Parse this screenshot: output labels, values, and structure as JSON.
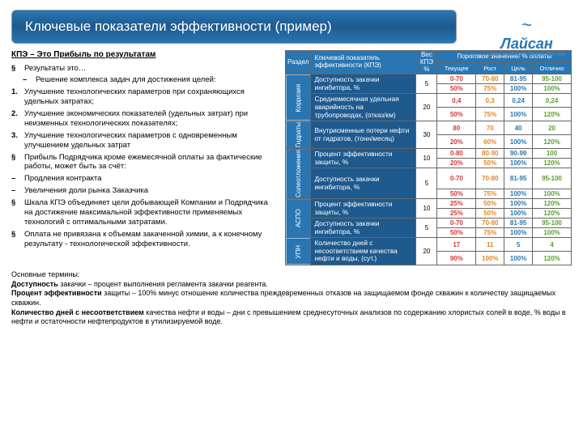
{
  "title": "Ключевые показатели эффективности (пример)",
  "logo": {
    "name": "Лайсан",
    "sub": "ХИМИЧЕСКИЕ ТЕХНОЛОГИИ"
  },
  "subtitle": "КПЭ – Это Прибыль по результатам",
  "bullets": {
    "b1": "Результаты это…",
    "b2": "Решение комплекса задач для достижения целей:",
    "b3": "Улучшение технологических параметров при сохраняющихся удельных затратах;",
    "b4": "Улучшение экономических показателей (удельных затрат) при неизменных технологических показателях;",
    "b5": "Улучшение технологических параметров с одновременным улучшением удельных затрат",
    "b6": "Прибыль Подрядчика кроме ежемесячной оплаты за фактические работы, может быть за счёт:",
    "b7": "Продления контракта",
    "b8": "Увеличения доли рынка Заказчика",
    "b9": "Шкала КПЭ объединяет цели добывающей Компании и Подрядчика на достижение максимальной эффективности применяемых технологий с оптимальными затратами.",
    "b10": "Оплата не привязана к объемам закаченной химии, а к конечному результату - технологической эффективности."
  },
  "terms": {
    "hdr": "Основные термины:",
    "t1a": "Доступность",
    "t1b": " закачки – процент выполнения регламента закачки реагента.",
    "t2a": "Процент эффективности",
    "t2b": " защиты – 100% минус отношение количества преждевременных отказов на защищаемом фонде скважин к количеству защищаемых скважин.",
    "t3a": "Количество дней с несоответствием",
    "t3b": " качества нефти и воды – дни с превышением среднесуточных анализов по содержанию хлористых солей в воде, % воды в нефти и остаточности нефтепродуктов в утилизируемой воде."
  },
  "table": {
    "headers": {
      "razdel": "Раздел",
      "kpi": "Ключевой показатель эффективности (КПЭ)",
      "weight": "Вес КПЭ %",
      "threshold": "Пороговое значение/ % оплаты",
      "levels": {
        "l1": "Текущее",
        "l2": "Рост",
        "l3": "Цель",
        "l4": "Отлично"
      }
    },
    "sections": [
      {
        "name": "Коррозия",
        "rows": [
          {
            "kpi": "Доступность закачки ингибитора, %",
            "w": "5",
            "v": [
              "0-70",
              "70-80",
              "81-95",
              "95-100"
            ],
            "p": [
              "50%",
              "75%",
              "100%",
              "100%"
            ]
          },
          {
            "kpi": "Среднемесячная удельная аварийность на трубопроводах, (отказ/км)",
            "w": "20",
            "v": [
              "0,4",
              "0,3",
              "0,24",
              "0,24"
            ],
            "p": [
              "50%",
              "75%",
              "100%",
              "120%"
            ]
          }
        ]
      },
      {
        "name": "Гидраты",
        "rows": [
          {
            "kpi": "Внутрисменные потери нефти от гидратов, (тонн/месяц)",
            "w": "30",
            "v": [
              "80",
              "70",
              "40",
              "20"
            ],
            "p": [
              "20%",
              "60%",
              "100%",
              "120%"
            ]
          }
        ]
      },
      {
        "name": "Солеотложения",
        "rows": [
          {
            "kpi": "Процент эффективности защиты, %",
            "w": "10",
            "v": [
              "0-80",
              "80-90",
              "90-99",
              "100"
            ],
            "p": [
              "20%",
              "50%",
              "100%",
              "120%"
            ]
          },
          {
            "kpi": "Доступность закачки ингибитора, %",
            "w": "5",
            "v": [
              "0-70",
              "70-80",
              "81-95",
              "95-100"
            ],
            "p": [
              "50%",
              "75%",
              "100%",
              "100%"
            ]
          }
        ]
      },
      {
        "name": "АСПО",
        "rows": [
          {
            "kpi": "Процент эффективности защиты, %",
            "w": "10",
            "v": [
              "25%",
              "50%",
              "100%",
              "120%"
            ],
            "p": [
              "25%",
              "50%",
              "100%",
              "120%"
            ]
          },
          {
            "kpi": "Доступность закачки ингибитора, %",
            "w": "5",
            "v": [
              "0-70",
              "70-80",
              "81-95",
              "95-100"
            ],
            "p": [
              "50%",
              "75%",
              "100%",
              "100%"
            ]
          }
        ]
      },
      {
        "name": "УПН",
        "rows": [
          {
            "kpi": "Количество дней с несоответствием качества нефти и воды, (сут.)",
            "w": "20",
            "v": [
              "17",
              "11",
              "5",
              "4"
            ],
            "p": [
              "90%",
              "100%",
              "100%",
              "120%"
            ]
          }
        ]
      }
    ]
  },
  "colors": {
    "header_bg": "#2976b3",
    "kpi_bg": "#1e5a8e",
    "red": "#d93636",
    "orange": "#e08828",
    "blue": "#2976b3",
    "green": "#5aa02c"
  }
}
